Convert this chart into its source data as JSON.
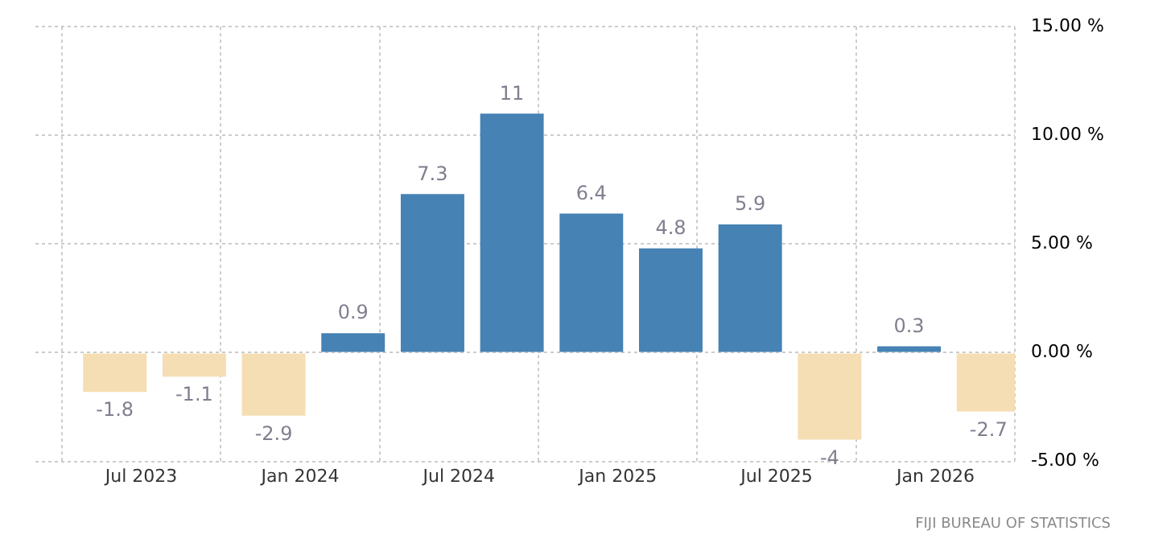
{
  "chart_data": {
    "type": "bar",
    "x": [
      "2023-06",
      "2023-09",
      "2023-12",
      "2024-03",
      "2024-06",
      "2024-09",
      "2024-12",
      "2025-03",
      "2025-06",
      "2025-09",
      "2025-12",
      "2026-03"
    ],
    "values": [
      -1.8,
      -1.1,
      -2.9,
      0.9,
      7.3,
      11,
      6.4,
      4.8,
      5.9,
      -4,
      0.3,
      -2.7
    ],
    "colors": [
      "#f5deb3",
      "#f5deb3",
      "#f5deb3",
      "#4682b4",
      "#4682b4",
      "#4682b4",
      "#4682b4",
      "#4682b4",
      "#4682b4",
      "#f5deb3",
      "#4682b4",
      "#f5deb3"
    ],
    "data_labels": true,
    "xlim": [
      "2023-03",
      "2026-04"
    ],
    "xticks": [
      {
        "value": "2023-07",
        "label": "Jul 2023"
      },
      {
        "value": "2024-01",
        "label": "Jan 2024"
      },
      {
        "value": "2024-07",
        "label": "Jul 2024"
      },
      {
        "value": "2025-01",
        "label": "Jan 2025"
      },
      {
        "value": "2025-07",
        "label": "Jul 2025"
      },
      {
        "value": "2026-01",
        "label": "Jan 2026"
      }
    ],
    "ylim": [
      -5,
      15
    ],
    "yticks": [
      {
        "value": -5,
        "label": "-5.00 %"
      },
      {
        "value": 0,
        "label": "0.00 %"
      },
      {
        "value": 5,
        "label": "5.00 %"
      },
      {
        "value": 10,
        "label": "10.00 %"
      },
      {
        "value": 15,
        "label": "15.00 %"
      }
    ],
    "grid": true,
    "legend": false,
    "annotations": [
      "FIJI BUREAU OF STATISTICS"
    ]
  }
}
